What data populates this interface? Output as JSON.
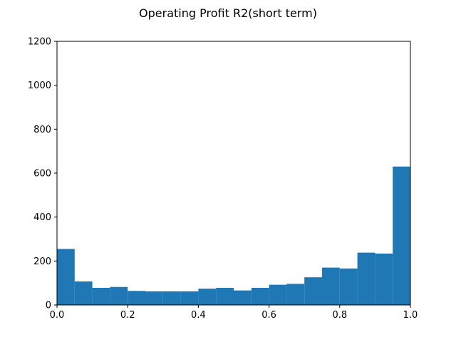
{
  "chart_data": {
    "type": "bar",
    "title": "Operating Profit R2(short term)",
    "xlabel": "",
    "ylabel": "",
    "xlim": [
      0.0,
      1.0
    ],
    "ylim": [
      0,
      1200
    ],
    "x_ticks": [
      "0.0",
      "0.2",
      "0.4",
      "0.6",
      "0.8",
      "1.0"
    ],
    "y_ticks": [
      "0",
      "200",
      "400",
      "600",
      "800",
      "1000",
      "1200"
    ],
    "bin_edges": [
      0.0,
      0.05,
      0.1,
      0.15,
      0.2,
      0.25,
      0.3,
      0.35,
      0.4,
      0.45,
      0.5,
      0.55,
      0.6,
      0.65,
      0.7,
      0.75,
      0.8,
      0.85,
      0.9,
      0.95,
      1.0
    ],
    "values": [
      255,
      107,
      78,
      82,
      64,
      62,
      62,
      62,
      74,
      78,
      66,
      78,
      92,
      96,
      126,
      170,
      166,
      238,
      234,
      630
    ],
    "bar_color": "#1f77b4",
    "grid": false,
    "legend": "none"
  }
}
